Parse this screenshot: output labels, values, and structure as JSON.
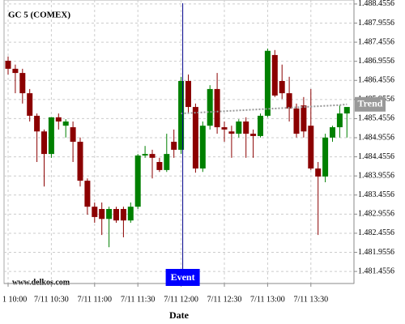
{
  "chart_data": {
    "type": "candlestick",
    "title": "GC 5 (COMEX)",
    "watermark": "www.delkos.com",
    "x_label": "Date",
    "categories": [
      "1 10:00",
      null,
      null,
      null,
      null,
      null,
      "7/11 10:30",
      null,
      null,
      null,
      null,
      null,
      "7/11 11:00",
      null,
      null,
      null,
      null,
      null,
      "7/11 11:30",
      null,
      null,
      null,
      null,
      null,
      "7/11 12:00",
      null,
      null,
      null,
      null,
      null,
      "7/11 12:30",
      null,
      null,
      null,
      null,
      null,
      "7/11 13:00",
      null,
      null,
      null,
      null,
      null,
      "7/11 13:30",
      null,
      null,
      null,
      null,
      null
    ],
    "open": [
      1486.97,
      1486.76,
      1486.65,
      1486.12,
      1485.53,
      1485.12,
      1484.53,
      1485.49,
      1485.27,
      1485.23,
      1484.85,
      1483.83,
      1483.15,
      1483.09,
      1482.83,
      1483.09,
      1483.09,
      1482.79,
      1483.15,
      1484.49,
      1484.53,
      1484.32,
      1484.11,
      1484.85,
      1484.64,
      1486.44,
      1485.76,
      1484.15,
      1485.27,
      1486.23,
      1485.23,
      1485.12,
      1485.06,
      1485.38,
      1485.06,
      1485.0,
      1485.53,
      1487.12,
      1486.44,
      1486.12,
      1485.72,
      1485.8,
      1485.27,
      1484.15,
      1483.94,
      1484.96,
      1485.23,
      1485.59
    ],
    "high": [
      1487.08,
      1486.87,
      1486.76,
      1486.23,
      1485.59,
      1485.17,
      1485.49,
      1485.59,
      1485.44,
      1485.38,
      1484.96,
      1483.89,
      1483.26,
      1483.26,
      1483.15,
      1483.15,
      1483.15,
      1483.26,
      1484.53,
      1484.74,
      1484.64,
      1484.43,
      1485.06,
      1485.17,
      1486.55,
      1486.61,
      1485.85,
      1485.38,
      1486.33,
      1486.65,
      1485.38,
      1485.27,
      1485.44,
      1485.49,
      1485.17,
      1485.59,
      1487.29,
      1487.25,
      1486.87,
      1486.55,
      1485.85,
      1486.02,
      1486.23,
      1484.32,
      1485.06,
      1485.27,
      1485.8,
      1485.72
    ],
    "low": [
      1486.61,
      1486.12,
      1485.85,
      1485.38,
      1484.32,
      1483.68,
      1484.43,
      1485.17,
      1484.96,
      1484.32,
      1483.68,
      1482.94,
      1482.73,
      1482.41,
      1482.09,
      1482.73,
      1482.35,
      1482.73,
      1483.09,
      1484.43,
      1483.89,
      1484.06,
      1484.06,
      1484.43,
      1484.53,
      1485.59,
      1484.04,
      1484.06,
      1485.17,
      1485.06,
      1484.85,
      1484.43,
      1484.96,
      1484.43,
      1484.43,
      1484.96,
      1485.49,
      1486.02,
      1485.97,
      1485.38,
      1484.96,
      1484.96,
      1484.11,
      1482.41,
      1483.79,
      1484.85,
      1484.96,
      1484.96
    ],
    "close": [
      1486.76,
      1486.65,
      1486.12,
      1485.53,
      1485.12,
      1484.53,
      1485.49,
      1485.38,
      1485.38,
      1484.85,
      1483.83,
      1483.15,
      1482.88,
      1482.83,
      1483.09,
      1482.79,
      1482.79,
      1483.15,
      1484.49,
      1484.53,
      1484.43,
      1484.11,
      1484.53,
      1484.64,
      1486.44,
      1485.76,
      1484.15,
      1485.27,
      1486.23,
      1485.23,
      1485.17,
      1485.06,
      1485.38,
      1485.06,
      1485.0,
      1485.53,
      1487.23,
      1486.06,
      1486.12,
      1485.72,
      1485.06,
      1485.12,
      1484.15,
      1483.94,
      1484.96,
      1485.23,
      1485.59,
      1485.76
    ],
    "up_color": "#008000",
    "down_color": "#8b0000",
    "trend": {
      "name": "Trend",
      "color": "#999999",
      "values": [
        null,
        null,
        null,
        null,
        null,
        null,
        null,
        null,
        null,
        null,
        null,
        null,
        null,
        null,
        null,
        null,
        null,
        null,
        null,
        null,
        null,
        null,
        null,
        null,
        1485.59,
        1485.6,
        1485.61,
        1485.62,
        1485.63,
        1485.64,
        1485.65,
        1485.66,
        1485.67,
        1485.68,
        1485.69,
        1485.7,
        1485.71,
        1485.72,
        1485.73,
        1485.74,
        1485.75,
        1485.76,
        1485.77,
        1485.78,
        1485.79,
        1485.8,
        1485.81,
        1485.83
      ]
    },
    "event": {
      "label": "Event",
      "at": "7/11 12:00",
      "color": "#0000ff"
    },
    "ylim": [
      1481.14,
      1488.56
    ],
    "yticks": [
      {
        "value": 1488.4556,
        "label": "1.488.4556"
      },
      {
        "value": 1487.9556,
        "label": "1.487.9556"
      },
      {
        "value": 1487.4556,
        "label": "1.487.4556"
      },
      {
        "value": 1486.9556,
        "label": "1.486.9556"
      },
      {
        "value": 1486.4556,
        "label": "1.486.4556"
      },
      {
        "value": 1485.9556,
        "label": "1.485.9556"
      },
      {
        "value": 1485.4556,
        "label": "1.485.4556"
      },
      {
        "value": 1484.9556,
        "label": "1.484.9556"
      },
      {
        "value": 1484.4556,
        "label": "1.484.4556"
      },
      {
        "value": 1483.9556,
        "label": "1.483.9556"
      },
      {
        "value": 1483.4556,
        "label": "1.483.4556"
      },
      {
        "value": 1482.9556,
        "label": "1.482.9556"
      },
      {
        "value": 1482.4556,
        "label": "1.482.4556"
      },
      {
        "value": 1481.9556,
        "label": "1.481.9556"
      },
      {
        "value": 1481.4556,
        "label": "1.481.4556"
      }
    ],
    "grid": true
  }
}
